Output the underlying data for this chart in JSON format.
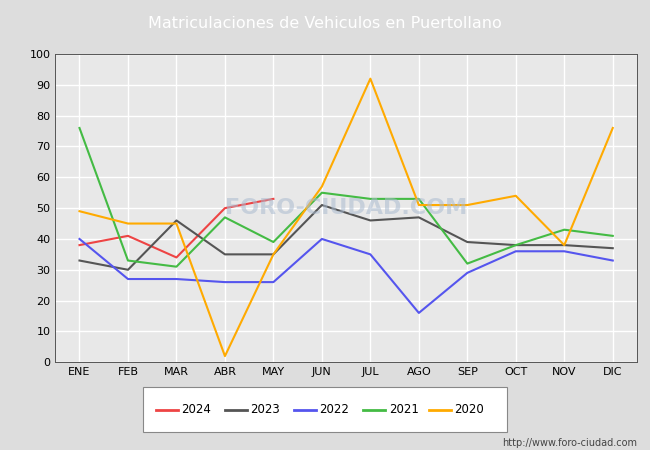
{
  "title": "Matriculaciones de Vehiculos en Puertollano",
  "title_bg_color": "#4a90d9",
  "title_text_color": "#ffffff",
  "months": [
    "ENE",
    "FEB",
    "MAR",
    "ABR",
    "MAY",
    "JUN",
    "JUL",
    "AGO",
    "SEP",
    "OCT",
    "NOV",
    "DIC"
  ],
  "series_order": [
    "2024",
    "2023",
    "2022",
    "2021",
    "2020"
  ],
  "series": {
    "2024": {
      "color": "#ee4444",
      "data": [
        38,
        41,
        34,
        50,
        53,
        null,
        null,
        null,
        null,
        null,
        null,
        null
      ]
    },
    "2023": {
      "color": "#555555",
      "data": [
        33,
        30,
        46,
        35,
        35,
        51,
        46,
        47,
        39,
        38,
        38,
        37
      ]
    },
    "2022": {
      "color": "#5555ee",
      "data": [
        40,
        27,
        27,
        26,
        26,
        40,
        35,
        16,
        29,
        36,
        36,
        33
      ]
    },
    "2021": {
      "color": "#44bb44",
      "data": [
        76,
        33,
        31,
        47,
        39,
        55,
        53,
        53,
        32,
        38,
        43,
        41
      ]
    },
    "2020": {
      "color": "#ffaa00",
      "data": [
        49,
        45,
        45,
        2,
        35,
        57,
        92,
        51,
        51,
        54,
        38,
        76
      ]
    }
  },
  "ylim": [
    0,
    100
  ],
  "yticks": [
    0,
    10,
    20,
    30,
    40,
    50,
    60,
    70,
    80,
    90,
    100
  ],
  "watermark": "FORO-CIUDAD.COM",
  "url": "http://www.foro-ciudad.com",
  "outer_bg_color": "#dddddd",
  "plot_bg_color": "#e8e8e8",
  "grid_color": "#ffffff"
}
